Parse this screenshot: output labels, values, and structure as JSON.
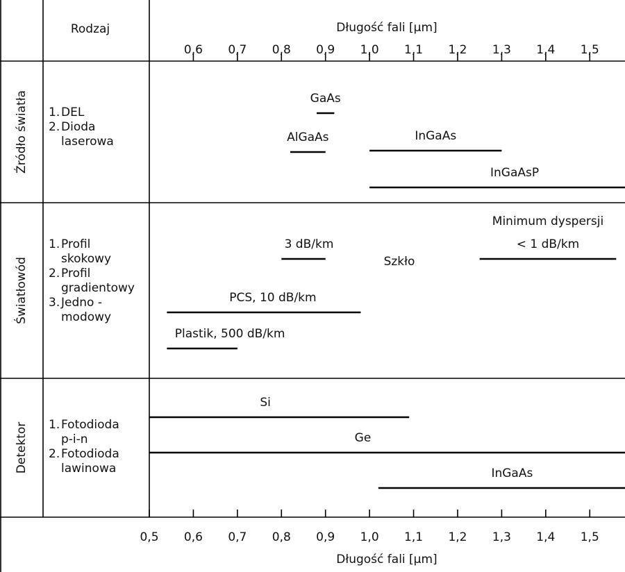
{
  "header": {
    "type_column": "Rodzaj"
  },
  "chart_data": {
    "type": "range",
    "title": "Długość fali [μm]",
    "xlabel": "Długość fali [μm]",
    "xlim": [
      0.5,
      1.58
    ],
    "x2ticks": [
      {
        "value": 0.6,
        "label": "0,6"
      },
      {
        "value": 0.7,
        "label": "0,7"
      },
      {
        "value": 0.8,
        "label": "0,8"
      },
      {
        "value": 0.9,
        "label": "0,9"
      },
      {
        "value": 1.0,
        "label": "1,0"
      },
      {
        "value": 1.1,
        "label": "1,1"
      },
      {
        "value": 1.2,
        "label": "1,2"
      },
      {
        "value": 1.3,
        "label": "1,3"
      },
      {
        "value": 1.4,
        "label": "1,4"
      },
      {
        "value": 1.5,
        "label": "1,5"
      }
    ],
    "xticks": [
      {
        "value": 0.5,
        "label": "0,5"
      },
      {
        "value": 0.6,
        "label": "0,6"
      },
      {
        "value": 0.7,
        "label": "0,7"
      },
      {
        "value": 0.8,
        "label": "0,8"
      },
      {
        "value": 0.9,
        "label": "0,9"
      },
      {
        "value": 1.0,
        "label": "1,0"
      },
      {
        "value": 1.1,
        "label": "1,1"
      },
      {
        "value": 1.2,
        "label": "1,2"
      },
      {
        "value": 1.3,
        "label": "1,3"
      },
      {
        "value": 1.4,
        "label": "1,4"
      },
      {
        "value": 1.5,
        "label": "1,5"
      }
    ],
    "color": "#000000",
    "sections": [
      {
        "title": "Źródło światła",
        "items": [
          {
            "num": "1.",
            "lines": [
              "DEL"
            ]
          },
          {
            "num": "2.",
            "lines": [
              "Dioda",
              "laserowa"
            ]
          }
        ],
        "series": [
          {
            "label": [
              "GaAs"
            ],
            "values": [
              0.88,
              0.92
            ]
          },
          {
            "label": [
              "AlGaAs"
            ],
            "values": [
              0.82,
              0.9
            ]
          },
          {
            "label": [
              "InGaAs"
            ],
            "values": [
              1.0,
              1.3
            ]
          },
          {
            "label": [
              "InGaAsP"
            ],
            "values": [
              1.0,
              1.58
            ]
          }
        ],
        "annotations": []
      },
      {
        "title": "Światłowód",
        "items": [
          {
            "num": "1.",
            "lines": [
              "Profil",
              "skokowy"
            ]
          },
          {
            "num": "2.",
            "lines": [
              "Profil",
              "gradientowy"
            ]
          },
          {
            "num": "3.",
            "lines": [
              "Jedno -",
              "modowy"
            ]
          }
        ],
        "series": [
          {
            "label": [
              "3 dB/km"
            ],
            "values": [
              0.8,
              0.9
            ]
          },
          {
            "label": [
              "Minimum dyspersji",
              "< 1 dB/km"
            ],
            "values": [
              1.25,
              1.56
            ]
          },
          {
            "label": [
              "PCS, 10 dB/km"
            ],
            "values": [
              0.54,
              0.98
            ]
          },
          {
            "label": [
              "Plastik, 500 dB/km"
            ],
            "values": [
              0.54,
              0.7
            ]
          }
        ],
        "annotations": [
          "Szkło"
        ]
      },
      {
        "title": "Detektor",
        "items": [
          {
            "num": "1.",
            "lines": [
              "Fotodioda",
              "p-i-n"
            ]
          },
          {
            "num": "2.",
            "lines": [
              "Fotodioda",
              "lawinowa"
            ]
          }
        ],
        "series": [
          {
            "label": [
              "Si"
            ],
            "values": [
              0.5,
              1.09
            ]
          },
          {
            "label": [
              "Ge"
            ],
            "values": [
              0.5,
              1.58
            ]
          },
          {
            "label": [
              "InGaAs"
            ],
            "values": [
              1.02,
              1.58
            ]
          }
        ],
        "annotations": []
      }
    ]
  }
}
